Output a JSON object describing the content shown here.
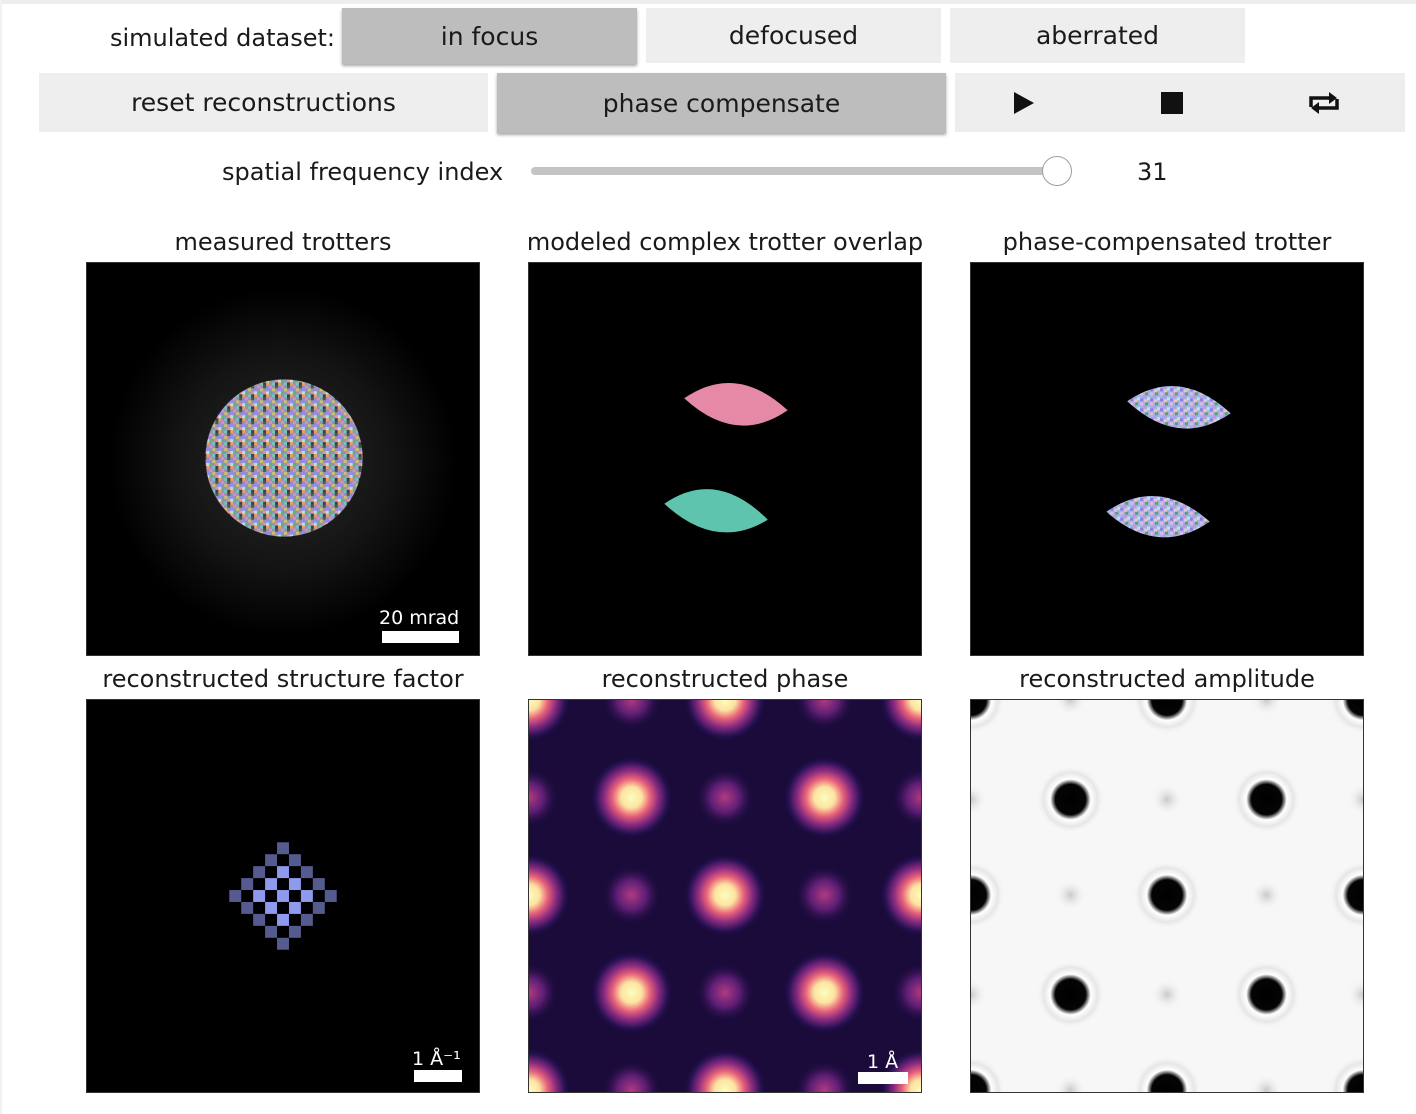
{
  "controls": {
    "dataset_label": "simulated dataset:",
    "datasets": [
      "in focus",
      "defocused",
      "aberrated"
    ],
    "active_dataset": "in focus",
    "reset_label": "reset reconstructions",
    "phase_label": "phase compensate",
    "play_icon": "play-icon",
    "stop_icon": "stop-icon",
    "loop_icon": "loop-icon"
  },
  "slider": {
    "label": "spatial frequency index",
    "value": "31",
    "fraction": 1.0
  },
  "panels": {
    "measured": {
      "title": "measured trotters",
      "scalebar": "20 mrad"
    },
    "modeled": {
      "title": "modeled complex trotter overlap"
    },
    "compensated": {
      "title": "phase-compensated trotter"
    },
    "structure": {
      "title": "reconstructed structure factor",
      "scalebar": "1 Å⁻¹"
    },
    "phase": {
      "title": "reconstructed phase",
      "scalebar": "1 Å"
    },
    "amplitude": {
      "title": "reconstructed amplitude"
    }
  },
  "colors": {
    "button": "#eeeeee",
    "button_active": "#bdbdbd",
    "trotter_pink": "#e589a6",
    "trotter_teal": "#5ec4ae",
    "structure_blue": "#8f99ee"
  }
}
